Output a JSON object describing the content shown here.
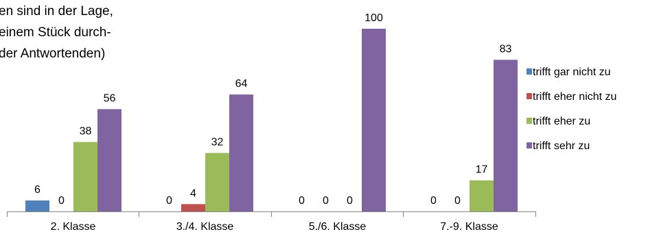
{
  "chart_data": {
    "type": "bar",
    "title_lines": [
      "en sind in der Lage,",
      "einem Stück durch-",
      "der Antwortenden)"
    ],
    "categories": [
      "2. Klasse",
      "3./4. Klasse",
      "5./6. Klasse",
      "7.-9. Klasse"
    ],
    "series": [
      {
        "name": "trifft gar nicht zu",
        "color": "#4f81bd",
        "values": [
          6,
          0,
          0,
          0
        ]
      },
      {
        "name": "trifft eher nicht zu",
        "color": "#c0504d",
        "values": [
          0,
          4,
          0,
          0
        ]
      },
      {
        "name": "trifft eher zu",
        "color": "#9bbb59",
        "values": [
          38,
          32,
          0,
          17
        ]
      },
      {
        "name": "trifft sehr zu",
        "color": "#8064a2",
        "values": [
          56,
          64,
          100,
          83
        ]
      }
    ],
    "ylim": [
      0,
      100
    ],
    "grid": false,
    "legend_position": "right",
    "data_labels": true
  }
}
